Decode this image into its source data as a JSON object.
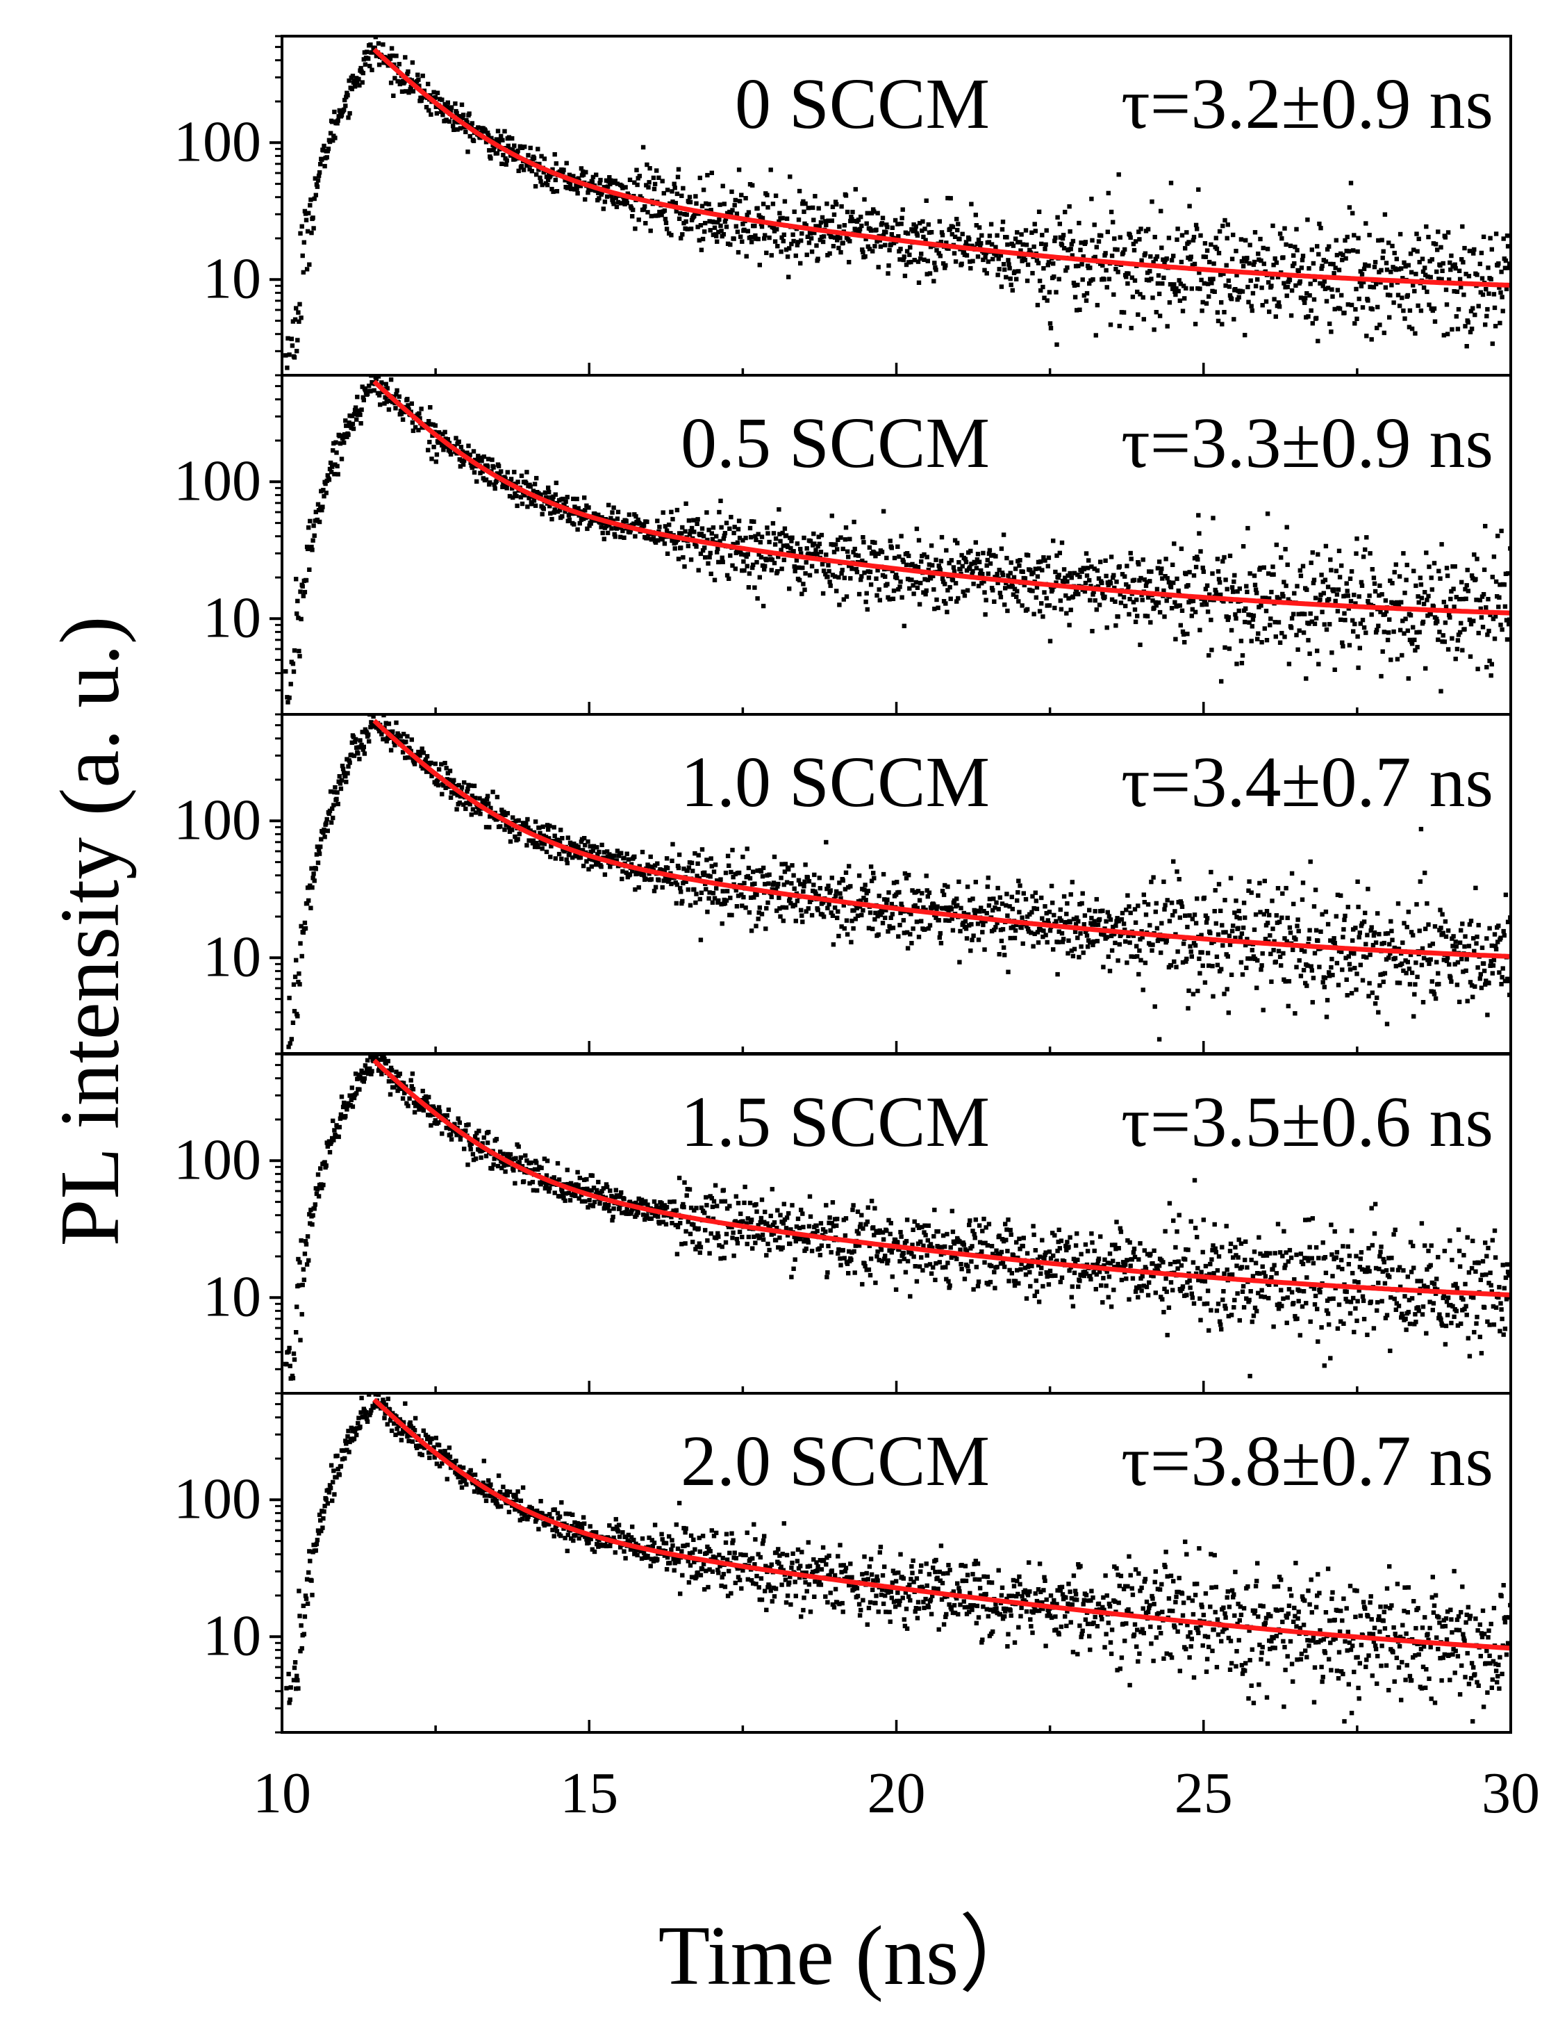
{
  "figure": {
    "ylabel": "PL intensity (a. u.)",
    "xlabel": "Time (ns）"
  },
  "colors": {
    "data_points": "#000000",
    "fit_curve": "#ff1a1a",
    "axes": "#000000"
  },
  "chart_data": {
    "type": "scatter",
    "layout": "5 stacked panels, shared x axis",
    "xlabel": "Time (ns）",
    "ylabel": "PL intensity (a. u.)",
    "xlim": [
      10,
      30
    ],
    "x_ticks": [
      10,
      15,
      20,
      25,
      30
    ],
    "y_scale": "log",
    "ylim": [
      2,
      600
    ],
    "y_ticks": [
      10,
      100
    ],
    "panels": [
      {
        "label": "0 SCCM",
        "tau_label": "τ=3.2±0.9 ns",
        "tau": 3.2,
        "tau_err": 0.9,
        "peak_time": 11.5,
        "peak_value": 480,
        "background": 7.5,
        "series": [
          {
            "name": "measured",
            "style": "scatter"
          },
          {
            "name": "fit",
            "style": "line"
          }
        ]
      },
      {
        "label": "0.5 SCCM",
        "tau_label": "τ=3.3±0.9 ns",
        "tau": 3.3,
        "tau_err": 0.9,
        "peak_time": 11.5,
        "peak_value": 540,
        "background": 9,
        "series": [
          {
            "name": "measured",
            "style": "scatter"
          },
          {
            "name": "fit",
            "style": "line"
          }
        ]
      },
      {
        "label": "1.0 SCCM",
        "tau_label": "τ=3.4±0.7 ns",
        "tau": 3.4,
        "tau_err": 0.7,
        "peak_time": 11.5,
        "peak_value": 540,
        "background": 8,
        "series": [
          {
            "name": "measured",
            "style": "scatter"
          },
          {
            "name": "fit",
            "style": "line"
          }
        ]
      },
      {
        "label": "1.5 SCCM",
        "tau_label": "τ=3.5±0.6 ns",
        "tau": 3.5,
        "tau_err": 0.6,
        "peak_time": 11.5,
        "peak_value": 540,
        "background": 8,
        "series": [
          {
            "name": "measured",
            "style": "scatter"
          },
          {
            "name": "fit",
            "style": "line"
          }
        ]
      },
      {
        "label": "2.0 SCCM",
        "tau_label": "τ=3.8±0.7 ns",
        "tau": 3.8,
        "tau_err": 0.7,
        "peak_time": 11.5,
        "peak_value": 540,
        "background": 5,
        "series": [
          {
            "name": "measured",
            "style": "scatter"
          },
          {
            "name": "fit",
            "style": "line"
          }
        ]
      }
    ]
  }
}
